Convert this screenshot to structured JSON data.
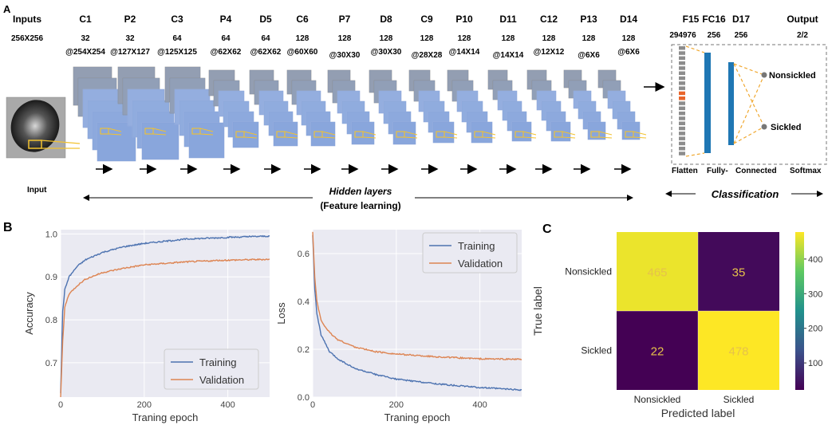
{
  "panel_a": {
    "letter": "A",
    "layers": [
      {
        "name": "Inputs",
        "size": "256X256",
        "channels": ""
      },
      {
        "name": "C1",
        "size": "@254X254",
        "channels": "32"
      },
      {
        "name": "P2",
        "size": "@127X127",
        "channels": "32"
      },
      {
        "name": "C3",
        "size": "@125X125",
        "channels": "64"
      },
      {
        "name": "P4",
        "size": "@62X62",
        "channels": "64"
      },
      {
        "name": "D5",
        "size": "@62X62",
        "channels": "64"
      },
      {
        "name": "C6",
        "size": "@60X60",
        "channels": "128"
      },
      {
        "name": "P7",
        "size": "@30X30",
        "channels": "128"
      },
      {
        "name": "D8",
        "size": "@30X30",
        "channels": "128"
      },
      {
        "name": "C9",
        "size": "@28X28",
        "channels": "128"
      },
      {
        "name": "P10",
        "size": "@14X14",
        "channels": "128"
      },
      {
        "name": "D11",
        "size": "@14X14",
        "channels": "128"
      },
      {
        "name": "C12",
        "size": "@12X12",
        "channels": "128"
      },
      {
        "name": "P13",
        "size": "@6X6",
        "channels": "128"
      },
      {
        "name": "D14",
        "size": "@6X6",
        "channels": "128"
      }
    ],
    "classifier_layers": [
      {
        "name": "F15",
        "value": "294976"
      },
      {
        "name": "FC16",
        "value": "256"
      },
      {
        "name": "D17",
        "value": "256"
      },
      {
        "name": "Output",
        "value": "2/2"
      }
    ],
    "output_labels": [
      "Nonsickled",
      "Sickled"
    ],
    "bottom_labels": {
      "flatten": "Flatten",
      "fully": "Fully-",
      "connected": "Connected",
      "softmax": "Softmax"
    },
    "input_label": "Input",
    "hidden_layers": "Hidden layers",
    "feature_learning": "(Feature learning)",
    "classification": "Classification"
  },
  "panel_b": {
    "letter": "B",
    "colors": {
      "training": "#4c72b0",
      "validation": "#dd8452",
      "bg": "#eaeaf2"
    }
  },
  "panel_c": {
    "letter": "C",
    "colormap": [
      "#440154",
      "#3b528b",
      "#21918c",
      "#5ec962",
      "#fde725"
    ]
  },
  "chart_data": [
    {
      "type": "line",
      "ylabel": "Accuracy",
      "xlabel": "Traning epoch",
      "xlim": [
        0,
        500
      ],
      "ylim": [
        0.62,
        1.01
      ],
      "xticks": [
        0,
        200,
        400
      ],
      "yticks": [
        0.7,
        0.8,
        0.9,
        1.0
      ],
      "ytick_labels": [
        "0.7",
        "0.8",
        "0.9",
        "1.0"
      ],
      "legend": "lower-right",
      "series": [
        {
          "name": "Training",
          "x": [
            0,
            5,
            10,
            20,
            40,
            60,
            100,
            150,
            200,
            300,
            400,
            500
          ],
          "values": [
            0.63,
            0.82,
            0.87,
            0.9,
            0.925,
            0.94,
            0.957,
            0.97,
            0.978,
            0.988,
            0.992,
            0.995
          ]
        },
        {
          "name": "Validation",
          "x": [
            0,
            5,
            10,
            20,
            40,
            60,
            100,
            150,
            200,
            300,
            400,
            500
          ],
          "values": [
            0.62,
            0.75,
            0.83,
            0.86,
            0.88,
            0.895,
            0.91,
            0.92,
            0.928,
            0.935,
            0.939,
            0.941
          ]
        }
      ]
    },
    {
      "type": "line",
      "ylabel": "Loss",
      "xlabel": "Traning epoch",
      "xlim": [
        0,
        500
      ],
      "ylim": [
        0,
        0.7
      ],
      "xticks": [
        0,
        200,
        400
      ],
      "yticks": [
        0.0,
        0.2,
        0.4,
        0.6
      ],
      "ytick_labels": [
        "0.0",
        "0.2",
        "0.4",
        "0.6"
      ],
      "legend": "top-right",
      "series": [
        {
          "name": "Training",
          "x": [
            0,
            5,
            10,
            20,
            40,
            60,
            100,
            150,
            200,
            300,
            400,
            500
          ],
          "values": [
            0.68,
            0.45,
            0.35,
            0.26,
            0.19,
            0.16,
            0.12,
            0.095,
            0.075,
            0.055,
            0.04,
            0.03
          ]
        },
        {
          "name": "Validation",
          "x": [
            0,
            5,
            10,
            20,
            40,
            60,
            100,
            150,
            200,
            300,
            400,
            500
          ],
          "values": [
            0.69,
            0.5,
            0.4,
            0.32,
            0.27,
            0.24,
            0.21,
            0.19,
            0.18,
            0.168,
            0.16,
            0.158
          ]
        }
      ]
    },
    {
      "type": "heatmap",
      "xlabel": "Predicted label",
      "ylabel": "True label",
      "row_labels": [
        "Nonsickled",
        "Sickled"
      ],
      "col_labels": [
        "Nonsickled",
        "Sickled"
      ],
      "values": [
        [
          465,
          35
        ],
        [
          22,
          478
        ]
      ],
      "vmin": 22,
      "vmax": 478,
      "colorbar_ticks": [
        100,
        200,
        300,
        400
      ]
    }
  ]
}
